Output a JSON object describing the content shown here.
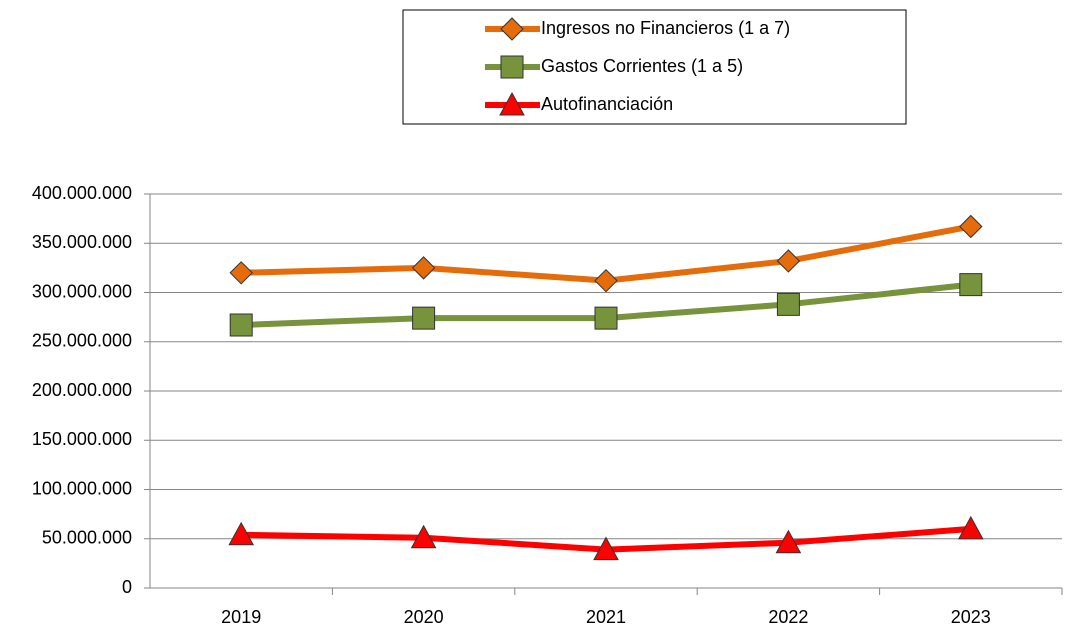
{
  "chart_data": {
    "type": "line",
    "categories": [
      "2019",
      "2020",
      "2021",
      "2022",
      "2023"
    ],
    "series": [
      {
        "name": "Ingresos no Financieros (1 a 7)",
        "color": "#e46c0a",
        "marker": "diamond",
        "values": [
          320000000,
          325000000,
          312000000,
          332000000,
          367000000
        ]
      },
      {
        "name": "Gastos Corrientes (1 a 5)",
        "color": "#77933c",
        "marker": "square",
        "values": [
          267000000,
          274000000,
          274000000,
          288000000,
          308000000
        ]
      },
      {
        "name": "Autofinanciación",
        "color": "#ff0000",
        "marker": "triangle",
        "values": [
          54000000,
          51000000,
          39000000,
          46000000,
          60000000
        ]
      }
    ],
    "ylim": [
      0,
      400000000
    ],
    "yticks": [
      0,
      {
        "value": 50000000,
        "label": "50.000.000"
      },
      {
        "value": 100000000,
        "label": "100.000.000"
      },
      {
        "value": 150000000,
        "label": "150.000.000"
      },
      {
        "value": 200000000,
        "label": "200.000.000"
      },
      {
        "value": 250000000,
        "label": "250.000.000"
      },
      {
        "value": 300000000,
        "label": "300.000.000"
      },
      {
        "value": 350000000,
        "label": "350.000.000"
      },
      {
        "value": 400000000,
        "label": "400.000.000"
      }
    ],
    "grid": true,
    "legend": "top"
  }
}
